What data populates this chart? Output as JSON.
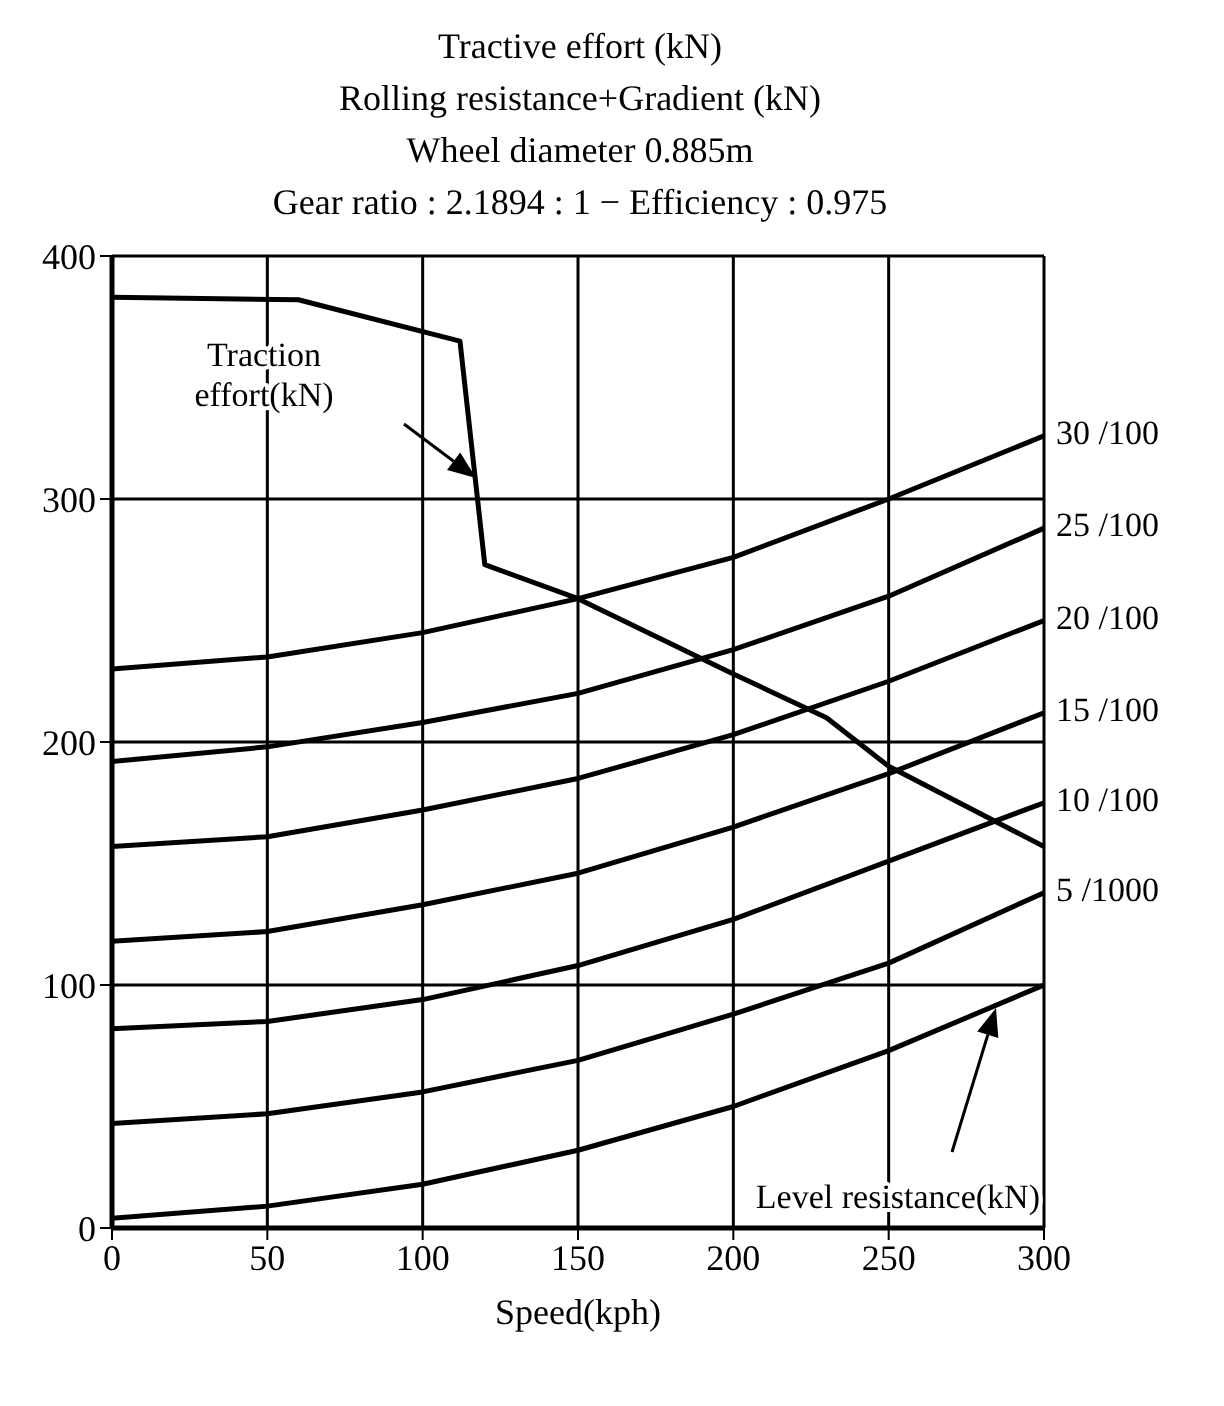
{
  "chart_data": {
    "type": "line",
    "title": "Tractive effort (kN)",
    "subtitle": "Rolling resistance+Gradient (kN)\nWheel diameter 0.885m\nGear ratio : 2.1894 : 1 − Efficiency : 0.975",
    "xlabel": "Speed(kph)",
    "xlim": [
      0,
      300
    ],
    "xticks": [
      0,
      50,
      100,
      150,
      200,
      250,
      300
    ],
    "ylim": [
      0,
      400
    ],
    "yticks": [
      0,
      100,
      200,
      300,
      400
    ],
    "grid": true,
    "marker": "none",
    "line_style": "solid",
    "annotations": [
      "Traction\neffort(kN)",
      "Level resistance(kN)"
    ],
    "series": [
      {
        "color": "#000000",
        "x": [
          0,
          60,
          112,
          120,
          150,
          200,
          230,
          250,
          300
        ],
        "values": [
          383,
          382,
          365,
          273,
          259,
          228,
          210,
          190,
          157
        ]
      },
      {
        "name": "30 /100",
        "color": "#000000",
        "x": [
          0,
          50,
          100,
          150,
          200,
          250,
          300
        ],
        "values": [
          230,
          235,
          245,
          259,
          276,
          300,
          326
        ]
      },
      {
        "name": "25 /100",
        "color": "#000000",
        "x": [
          0,
          50,
          100,
          150,
          200,
          250,
          300
        ],
        "values": [
          192,
          198,
          208,
          220,
          238,
          260,
          288
        ]
      },
      {
        "name": "20 /100",
        "color": "#000000",
        "x": [
          0,
          50,
          100,
          150,
          200,
          250,
          300
        ],
        "values": [
          157,
          161,
          172,
          185,
          203,
          225,
          250
        ]
      },
      {
        "name": "15 /100",
        "color": "#000000",
        "x": [
          0,
          50,
          100,
          150,
          200,
          250,
          300
        ],
        "values": [
          118,
          122,
          133,
          146,
          165,
          187,
          212
        ]
      },
      {
        "name": "10 /100",
        "color": "#000000",
        "x": [
          0,
          50,
          100,
          150,
          200,
          250,
          300
        ],
        "values": [
          82,
          85,
          94,
          108,
          127,
          151,
          175
        ]
      },
      {
        "name": "5 /1000",
        "color": "#000000",
        "x": [
          0,
          50,
          100,
          150,
          200,
          250,
          300
        ],
        "values": [
          43,
          47,
          56,
          69,
          88,
          109,
          138
        ]
      },
      {
        "color": "#000000",
        "x": [
          0,
          50,
          100,
          150,
          200,
          250,
          300
        ],
        "values": [
          4,
          9,
          18,
          32,
          50,
          73,
          100
        ]
      }
    ]
  }
}
